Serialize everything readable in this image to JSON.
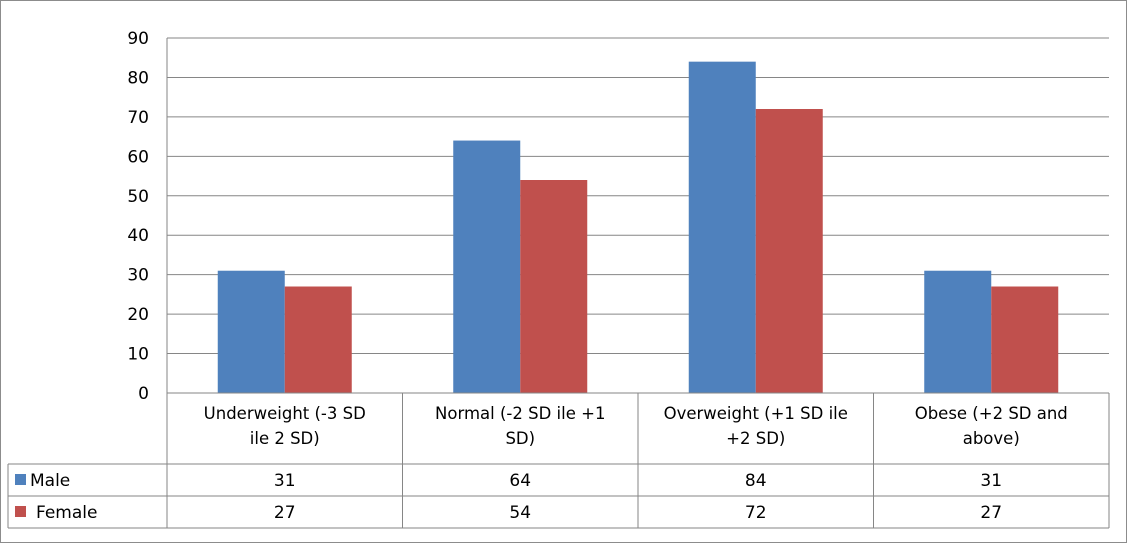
{
  "chart_data": {
    "type": "bar",
    "categories": [
      [
        "Underweight (-3 SD",
        "ile 2 SD)"
      ],
      [
        "Normal (-2 SD ile +1",
        "SD)"
      ],
      [
        "Overweight (+1 SD ile",
        "+2 SD)"
      ],
      [
        "Obese (+2 SD and",
        "above)"
      ]
    ],
    "series": [
      {
        "name": "Male",
        "color": "#4F81BD",
        "values": [
          31,
          64,
          84,
          31
        ]
      },
      {
        "name": "Female",
        "color": "#C0504D",
        "values": [
          27,
          54,
          72,
          27
        ]
      }
    ],
    "ylim": [
      0,
      90
    ],
    "yticks": [
      0,
      10,
      20,
      30,
      40,
      50,
      60,
      70,
      80,
      90
    ],
    "grid": true,
    "legend": "data-table"
  }
}
